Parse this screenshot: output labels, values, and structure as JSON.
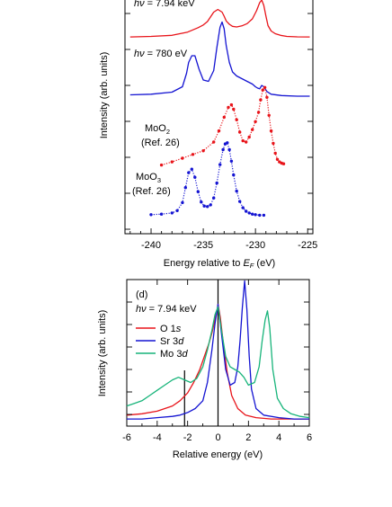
{
  "chart_data": [
    {
      "type": "line",
      "panel": "top",
      "xlabel_prefix": "Energy relative to ",
      "xlabel_E": "E",
      "xlabel_F": "F",
      "xlabel_suffix": " (eV)",
      "ylabel": "Intensity (arb. units)",
      "xlim": [
        -242.5,
        -224.5
      ],
      "x_reversed": false,
      "xticks": [
        -240,
        -235,
        -230,
        -225
      ],
      "xtick_labels": [
        "-240",
        "-235",
        "-230",
        "-225"
      ],
      "annotations": {
        "hv_794": {
          "prefix": "hν",
          "text": " = 7.94 keV"
        },
        "hv_780": {
          "prefix": "hν",
          "text": " = 780 eV"
        },
        "moo2_label": "MoO",
        "moo2_sub": "2",
        "moo2_ref": "(Ref. 26)",
        "moo3_label": "MoO",
        "moo3_sub": "3",
        "moo3_ref": "(Ref. 26)"
      },
      "series": [
        {
          "key": "red_794",
          "color": "#e8141a",
          "style": "line",
          "x": [
            -242,
            -240,
            -238,
            -236.5,
            -235.5,
            -235,
            -234.6,
            -234.3,
            -234,
            -233.6,
            -233.2,
            -233,
            -232.8,
            -232.5,
            -232.2,
            -231.8,
            -231.3,
            -230.8,
            -230.3,
            -229.9,
            -229.6,
            -229.4,
            -229.2,
            -229.0,
            -228.8,
            -228.5,
            -228.1,
            -227.6,
            -227,
            -226,
            -224.8
          ],
          "y": [
            0.26,
            0.3,
            0.38,
            0.62,
            0.95,
            1.15,
            1.4,
            1.75,
            2.1,
            2.3,
            2.1,
            1.8,
            1.45,
            1.2,
            1.05,
            1.0,
            1.08,
            1.25,
            1.6,
            2.2,
            2.8,
            3.0,
            2.6,
            1.8,
            1.1,
            0.7,
            0.5,
            0.38,
            0.3,
            0.27,
            0.26
          ]
        },
        {
          "key": "blue_780",
          "color": "#1414d2",
          "style": "line",
          "x": [
            -242,
            -240,
            -238,
            -237,
            -236.6,
            -236.4,
            -236.1,
            -235.8,
            -235.4,
            -235,
            -234.5,
            -234,
            -233.7,
            -233.4,
            -233.2,
            -233.0,
            -232.8,
            -232.5,
            -232.2,
            -231.8,
            -231.3,
            -230.8,
            -230.3,
            -230.0,
            -229.8,
            -229.6,
            -229.4,
            -229.2,
            -228.9,
            -228.5,
            -227.5,
            -226,
            -224.8
          ],
          "y": [
            0.02,
            0.03,
            0.06,
            0.14,
            0.34,
            0.5,
            0.6,
            0.6,
            0.4,
            0.24,
            0.22,
            0.38,
            0.72,
            1.02,
            1.1,
            1.0,
            0.75,
            0.5,
            0.36,
            0.3,
            0.26,
            0.22,
            0.18,
            0.14,
            0.12,
            0.11,
            0.16,
            0.14,
            0.07,
            0.03,
            0.01,
            0.0,
            0.0
          ]
        },
        {
          "key": "red_moo2",
          "color": "#e8141a",
          "style": "dots",
          "x": [
            -239,
            -238,
            -237,
            -236,
            -235,
            -234,
            -233.5,
            -233,
            -232.6,
            -232.3,
            -232.1,
            -231.8,
            -231.5,
            -231.2,
            -230.9,
            -230.6,
            -230.3,
            -230.0,
            -229.7,
            -229.5,
            -229.3,
            -229.1,
            -228.9,
            -228.7,
            -228.5,
            -228.3,
            -228.1,
            -227.9,
            -227.7,
            -227.5,
            -227.3
          ],
          "y": [
            0.05,
            0.1,
            0.16,
            0.22,
            0.28,
            0.42,
            0.6,
            0.82,
            0.98,
            1.02,
            0.95,
            0.78,
            0.58,
            0.44,
            0.42,
            0.5,
            0.62,
            0.75,
            0.9,
            1.1,
            1.26,
            1.3,
            1.14,
            0.85,
            0.6,
            0.4,
            0.24,
            0.14,
            0.1,
            0.08,
            0.07
          ]
        },
        {
          "key": "blue_moo3",
          "color": "#1414d2",
          "style": "dots",
          "x": [
            -240,
            -239,
            -238,
            -237.5,
            -237,
            -236.7,
            -236.4,
            -236.1,
            -235.8,
            -235.5,
            -235.2,
            -234.9,
            -234.6,
            -234.3,
            -234.0,
            -233.7,
            -233.4,
            -233.1,
            -232.9,
            -232.7,
            -232.5,
            -232.3,
            -232.1,
            -231.8,
            -231.5,
            -231.2,
            -230.9,
            -230.6,
            -230.3,
            -230,
            -229.6,
            -229.2
          ],
          "y": [
            0.05,
            0.06,
            0.08,
            0.12,
            0.26,
            0.52,
            0.78,
            0.84,
            0.7,
            0.45,
            0.27,
            0.2,
            0.19,
            0.22,
            0.34,
            0.6,
            0.92,
            1.18,
            1.28,
            1.3,
            1.18,
            0.98,
            0.74,
            0.46,
            0.28,
            0.17,
            0.11,
            0.08,
            0.06,
            0.05,
            0.04,
            0.04
          ]
        }
      ]
    },
    {
      "type": "line",
      "panel": "bottom",
      "panel_label": "(d)",
      "hv_prefix": "hν",
      "hv_text": " = 7.94 keV",
      "xlabel": "Relative energy (eV)",
      "ylabel": "Intensity (arb. units)",
      "xlim": [
        -6,
        6
      ],
      "xticks": [
        -6,
        -4,
        -2,
        0,
        2,
        4,
        6
      ],
      "xtick_labels": [
        "-6",
        "-4",
        "-2",
        "0",
        "2",
        "4",
        "6"
      ],
      "vlines": [
        0,
        -2.2
      ],
      "legend_placement": "upper-left",
      "legend": [
        {
          "key": "o1s",
          "pre": "O 1",
          "ital": "s",
          "color": "#e8141a"
        },
        {
          "key": "sr3d",
          "pre": "Sr 3",
          "ital": "d",
          "color": "#1414d2"
        },
        {
          "key": "mo3d",
          "pre": "Mo 3",
          "ital": "d",
          "color": "#17b47a"
        }
      ],
      "series": [
        {
          "key": "o1s",
          "color": "#e8141a",
          "x": [
            -6,
            -5,
            -4,
            -3,
            -2.5,
            -2,
            -1.6,
            -1.2,
            -0.9,
            -0.6,
            -0.4,
            -0.2,
            -0.05,
            0,
            0.15,
            0.35,
            0.6,
            0.9,
            1.3,
            1.8,
            2.5,
            3.5,
            4.5,
            6
          ],
          "y": [
            0.05,
            0.06,
            0.08,
            0.12,
            0.16,
            0.22,
            0.3,
            0.4,
            0.5,
            0.6,
            0.68,
            0.78,
            0.86,
            0.9,
            0.8,
            0.6,
            0.38,
            0.2,
            0.1,
            0.05,
            0.03,
            0.02,
            0.02,
            0.02
          ]
        },
        {
          "key": "sr3d",
          "color": "#1414d2",
          "x": [
            -6,
            -5,
            -4,
            -3,
            -2.5,
            -2,
            -1.5,
            -1.0,
            -0.7,
            -0.4,
            -0.2,
            0,
            0.2,
            0.5,
            0.8,
            1.1,
            1.3,
            1.45,
            1.6,
            1.75,
            1.9,
            2.05,
            2.2,
            2.5,
            3.0,
            4,
            5,
            6
          ],
          "y": [
            0.02,
            0.02,
            0.03,
            0.04,
            0.05,
            0.07,
            0.1,
            0.16,
            0.3,
            0.55,
            0.75,
            0.9,
            0.7,
            0.4,
            0.28,
            0.3,
            0.42,
            0.62,
            0.88,
            1.08,
            0.86,
            0.5,
            0.25,
            0.1,
            0.05,
            0.03,
            0.02,
            0.02
          ]
        },
        {
          "key": "mo3d",
          "color": "#17b47a",
          "x": [
            -6,
            -5.5,
            -5,
            -4.5,
            -4,
            -3.5,
            -3,
            -2.6,
            -2.2,
            -1.8,
            -1.4,
            -1.0,
            -0.7,
            -0.4,
            -0.2,
            0,
            0.2,
            0.5,
            0.8,
            1.1,
            1.4,
            1.7,
            2.0,
            2.4,
            2.7,
            2.9,
            3.1,
            3.25,
            3.4,
            3.6,
            3.9,
            4.3,
            4.8,
            5.4,
            6
          ],
          "y": [
            0.12,
            0.14,
            0.16,
            0.2,
            0.24,
            0.28,
            0.32,
            0.34,
            0.32,
            0.3,
            0.33,
            0.42,
            0.55,
            0.7,
            0.82,
            0.88,
            0.72,
            0.5,
            0.42,
            0.4,
            0.38,
            0.34,
            0.28,
            0.3,
            0.42,
            0.62,
            0.78,
            0.85,
            0.72,
            0.4,
            0.18,
            0.1,
            0.06,
            0.04,
            0.03
          ]
        }
      ]
    }
  ]
}
